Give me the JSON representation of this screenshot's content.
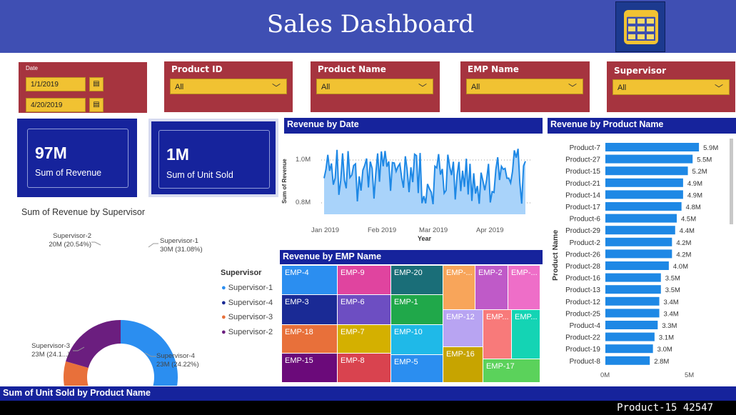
{
  "header": {
    "title": "Sales Dashboard",
    "logo_icon": "table-icon"
  },
  "slicers": {
    "date": {
      "label": "Date",
      "start": "1/1/2019",
      "end": "4/20/2019",
      "icon": "calendar-icon"
    },
    "product_id": {
      "label": "Product ID",
      "value": "All"
    },
    "product_name": {
      "label": "Product Name",
      "value": "All"
    },
    "emp_name": {
      "label": "EMP Name",
      "value": "All"
    },
    "supervisor": {
      "label": "Supervisor",
      "value": "All"
    }
  },
  "kpis": {
    "revenue": {
      "value": "97M",
      "label": "Sum of Revenue"
    },
    "units": {
      "value": "1M",
      "label": "Sum of Unit Sold"
    }
  },
  "donut": {
    "title": "Sum of Revenue by Supervisor",
    "legend_title": "Supervisor",
    "slices": [
      {
        "name": "Supervisor-1",
        "value": 30,
        "label_name": "Supervisor-1",
        "label_value": "30M (31.08%)",
        "pct": 31.08,
        "color": "#2b8ef0"
      },
      {
        "name": "Supervisor-4",
        "value": 23,
        "label_name": "Supervisor-4",
        "label_value": "23M (24.22%)",
        "pct": 24.22,
        "color": "#1a2a95"
      },
      {
        "name": "Supervisor-3",
        "value": 23,
        "label_name": "Supervisor-3",
        "label_value": "23M (24.1...)",
        "pct": 24.16,
        "color": "#e8703a"
      },
      {
        "name": "Supervisor-2",
        "value": 20,
        "label_name": "Supervisor-2",
        "label_value": "20M (20.54%)",
        "pct": 20.54,
        "color": "#6b1e7f"
      }
    ]
  },
  "line_chart": {
    "title": "Revenue by Date",
    "ylabel": "Sum of Revenue",
    "xlabel": "Year",
    "y_ticks": [
      "1.0M",
      "0.8M"
    ],
    "x_ticks": [
      "Jan 2019",
      "Feb 2019",
      "Mar 2019",
      "Apr 2019"
    ],
    "color": "#1e88e5",
    "area_color": "#a9d3fa"
  },
  "treemap": {
    "title": "Revenue by EMP Name",
    "tiles": [
      {
        "name": "EMP-4",
        "color": "#2b8ef0"
      },
      {
        "name": "EMP-9",
        "color": "#e0449f"
      },
      {
        "name": "EMP-20",
        "color": "#1a6e78"
      },
      {
        "name": "EMP-...",
        "color": "#f8a55a"
      },
      {
        "name": "EMP-2",
        "color": "#bf5ac8"
      },
      {
        "name": "EMP-...",
        "color": "#ee6ec8"
      },
      {
        "name": "EMP-3",
        "color": "#1a2a95"
      },
      {
        "name": "EMP-6",
        "color": "#6d4ec2"
      },
      {
        "name": "EMP-1",
        "color": "#20a84a"
      },
      {
        "name": "EMP-12",
        "color": "#b8a4f2"
      },
      {
        "name": "EMP...",
        "color": "#f87a7a"
      },
      {
        "name": "EMP...",
        "color": "#14d4b4"
      },
      {
        "name": "EMP-18",
        "color": "#e8703a"
      },
      {
        "name": "EMP-7",
        "color": "#d4b000"
      },
      {
        "name": "EMP-10",
        "color": "#1fb9e8"
      },
      {
        "name": "EMP-16",
        "color": "#c7a400"
      },
      {
        "name": "EMP-17",
        "color": "#5bd25b"
      },
      {
        "name": "EMP-15",
        "color": "#6b0a7a"
      },
      {
        "name": "EMP-8",
        "color": "#d9434f"
      },
      {
        "name": "EMP-5",
        "color": "#2b8ef0"
      }
    ]
  },
  "chart_data": {
    "type": "bar",
    "title": "Revenue by Product Name",
    "ylabel": "Product Name",
    "x_ticks": [
      "0M",
      "5M"
    ],
    "xlim": [
      0,
      6.3
    ],
    "color": "#1e88e5",
    "categories": [
      "Product-7",
      "Product-27",
      "Product-15",
      "Product-21",
      "Product-14",
      "Product-17",
      "Product-6",
      "Product-29",
      "Product-2",
      "Product-26",
      "Product-28",
      "Product-16",
      "Product-13",
      "Product-12",
      "Product-25",
      "Product-4",
      "Product-22",
      "Product-19",
      "Product-8"
    ],
    "values": [
      5.9,
      5.5,
      5.2,
      4.9,
      4.9,
      4.8,
      4.5,
      4.4,
      4.2,
      4.2,
      4.0,
      3.5,
      3.5,
      3.4,
      3.4,
      3.3,
      3.1,
      3.0,
      2.8
    ],
    "labels": [
      "5.9M",
      "5.5M",
      "5.2M",
      "4.9M",
      "4.9M",
      "4.8M",
      "4.5M",
      "4.4M",
      "4.2M",
      "4.2M",
      "4.0M",
      "3.5M",
      "3.5M",
      "3.4M",
      "3.4M",
      "3.3M",
      "3.1M",
      "3.0M",
      "2.8M"
    ]
  },
  "bottom": {
    "title": "Sum of Unit Sold by Product Name",
    "tooltip": "Product-15 42547"
  }
}
